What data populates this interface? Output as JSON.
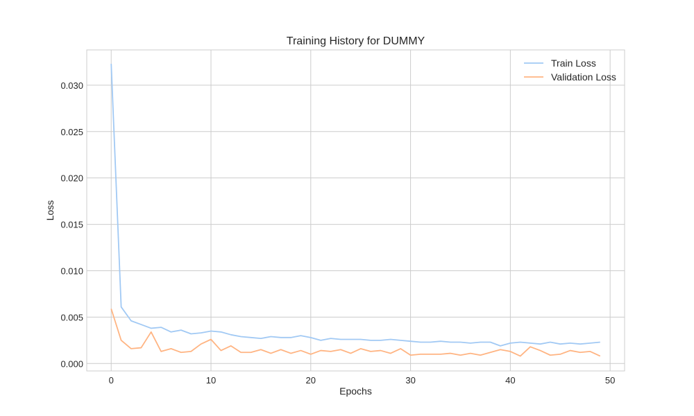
{
  "chart_data": {
    "type": "line",
    "title": "Training History for DUMMY",
    "xlabel": "Epochs",
    "ylabel": "Loss",
    "xlim": [
      -2.45,
      51.45
    ],
    "ylim": [
      -0.0008,
      0.0338
    ],
    "xticks": [
      0,
      10,
      20,
      30,
      40,
      50
    ],
    "xtick_labels": [
      "0",
      "10",
      "20",
      "30",
      "40",
      "50"
    ],
    "yticks": [
      0.0,
      0.005,
      0.01,
      0.015,
      0.02,
      0.025,
      0.03
    ],
    "ytick_labels": [
      "0.000",
      "0.005",
      "0.010",
      "0.015",
      "0.020",
      "0.025",
      "0.030"
    ],
    "grid": true,
    "legend_position": "top-right",
    "x": [
      0,
      1,
      2,
      3,
      4,
      5,
      6,
      7,
      8,
      9,
      10,
      11,
      12,
      13,
      14,
      15,
      16,
      17,
      18,
      19,
      20,
      21,
      22,
      23,
      24,
      25,
      26,
      27,
      28,
      29,
      30,
      31,
      32,
      33,
      34,
      35,
      36,
      37,
      38,
      39,
      40,
      41,
      42,
      43,
      44,
      45,
      46,
      47,
      48,
      49
    ],
    "series": [
      {
        "name": "Train Loss",
        "color": "#a1c9f4",
        "values": [
          0.0323,
          0.0061,
          0.0046,
          0.0042,
          0.0038,
          0.0039,
          0.0034,
          0.0036,
          0.0032,
          0.0033,
          0.0035,
          0.0034,
          0.0031,
          0.0029,
          0.0028,
          0.0027,
          0.0029,
          0.0028,
          0.0028,
          0.003,
          0.0028,
          0.0025,
          0.0027,
          0.0026,
          0.0026,
          0.0026,
          0.0025,
          0.0025,
          0.0026,
          0.0025,
          0.0024,
          0.0023,
          0.0023,
          0.0024,
          0.0023,
          0.0023,
          0.0022,
          0.0023,
          0.0023,
          0.0019,
          0.0022,
          0.0023,
          0.0022,
          0.0021,
          0.0023,
          0.0021,
          0.0022,
          0.0021,
          0.0022,
          0.0023
        ]
      },
      {
        "name": "Validation Loss",
        "color": "#ffb482",
        "values": [
          0.0059,
          0.0025,
          0.0016,
          0.0017,
          0.0034,
          0.0013,
          0.0016,
          0.0012,
          0.0013,
          0.0021,
          0.0026,
          0.0014,
          0.0019,
          0.0012,
          0.0012,
          0.0015,
          0.0011,
          0.0015,
          0.0011,
          0.0014,
          0.001,
          0.0014,
          0.0013,
          0.0015,
          0.0011,
          0.0016,
          0.0013,
          0.0014,
          0.0011,
          0.0016,
          0.0009,
          0.001,
          0.001,
          0.001,
          0.0011,
          0.0009,
          0.0011,
          0.0009,
          0.0012,
          0.0015,
          0.0013,
          0.0008,
          0.0018,
          0.0014,
          0.0009,
          0.001,
          0.0014,
          0.0012,
          0.0013,
          0.0008
        ]
      }
    ]
  }
}
